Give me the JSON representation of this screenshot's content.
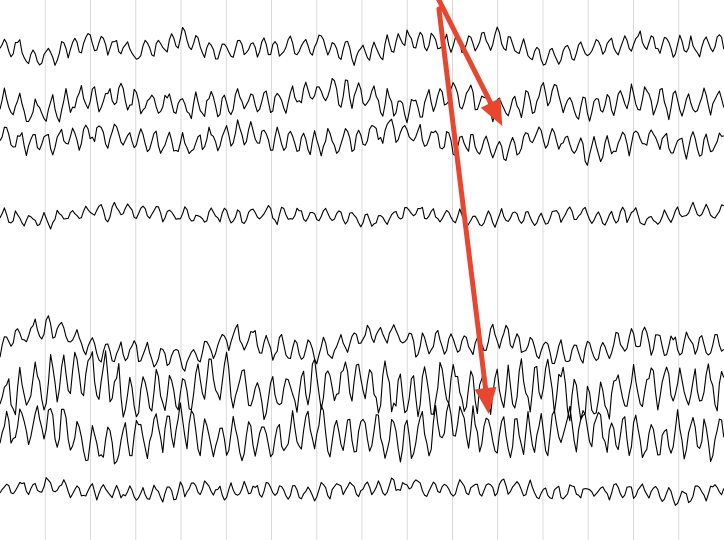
{
  "colors": {
    "background": "#ffffff",
    "grid": "#d9d9d9",
    "trace": "#000000",
    "annotation_arrow": "#e8462e"
  },
  "chart_data": {
    "type": "line",
    "title": "",
    "xlabel": "",
    "ylabel": "",
    "grid": true,
    "legend": "none",
    "x_range": [
      0,
      16
    ],
    "y_range": [
      0,
      12
    ],
    "vertical_gridlines_x": [
      1,
      2,
      3,
      4,
      5,
      6,
      7,
      8,
      9,
      10,
      11,
      12,
      13,
      14,
      15
    ],
    "series": [
      {
        "group": 1,
        "baseline": 1.0,
        "amplitude": 0.55,
        "noise": 0.35,
        "seed": 11,
        "profile": [
          0.0,
          0.55,
          -0.2,
          0.2,
          -0.3,
          0.1,
          0.2,
          -0.1,
          0.3,
          -0.2,
          0.0,
          -0.3,
          0.5,
          0.1,
          -0.2,
          0.1,
          0.0
        ]
      },
      {
        "group": 1,
        "baseline": 2.2,
        "amplitude": 0.6,
        "noise": 0.45,
        "seed": 23,
        "profile": [
          0.1,
          0.5,
          -0.2,
          0.1,
          0.4,
          0.2,
          0.1,
          -0.2,
          0.0,
          0.4,
          -0.3,
          0.2,
          0.0,
          0.5,
          -0.1,
          0.2,
          0.0
        ]
      },
      {
        "group": 1,
        "baseline": 3.1,
        "amplitude": 0.5,
        "noise": 0.4,
        "seed": 37,
        "profile": [
          0.0,
          0.3,
          -0.3,
          0.0,
          0.2,
          -0.2,
          -0.1,
          0.2,
          0.0,
          -0.3,
          0.1,
          0.3,
          -0.2,
          0.4,
          -0.1,
          0.0,
          0.1
        ]
      },
      {
        "group": 1,
        "baseline": 4.8,
        "amplitude": 0.25,
        "noise": 0.25,
        "seed": 41,
        "profile": [
          0.0,
          0.1,
          -0.2,
          0.0,
          0.1,
          0.0,
          -0.1,
          0.1,
          0.0,
          -0.2,
          0.1,
          0.0,
          0.1,
          -0.1,
          0.0,
          0.1,
          0.0
        ]
      },
      {
        "group": 2,
        "baseline": 7.6,
        "amplitude": 0.6,
        "noise": 0.4,
        "seed": 53,
        "profile": [
          0.3,
          -0.5,
          0.2,
          0.4,
          0.6,
          -0.2,
          0.1,
          0.2,
          -0.3,
          0.0,
          0.2,
          -0.1,
          0.3,
          0.4,
          -0.2,
          0.1,
          0.0
        ]
      },
      {
        "group": 2,
        "baseline": 8.6,
        "amplitude": 0.95,
        "noise": 0.8,
        "seed": 67,
        "profile": [
          0.2,
          0.0,
          -0.4,
          0.3,
          0.1,
          -0.2,
          0.3,
          0.0,
          -0.1,
          0.2,
          0.0,
          0.1,
          -0.2,
          0.3,
          0.0,
          0.1,
          0.0
        ]
      },
      {
        "group": 2,
        "baseline": 9.6,
        "amplitude": 0.9,
        "noise": 0.75,
        "seed": 79,
        "profile": [
          0.0,
          -0.3,
          0.4,
          0.1,
          -0.2,
          0.3,
          0.2,
          -0.1,
          0.0,
          0.2,
          -0.3,
          0.1,
          0.0,
          -0.2,
          0.2,
          0.0,
          0.1
        ]
      },
      {
        "group": 2,
        "baseline": 10.9,
        "amplitude": 0.3,
        "noise": 0.25,
        "seed": 97,
        "profile": [
          0.0,
          0.1,
          -0.1,
          0.0,
          0.1,
          0.0,
          -0.1,
          0.1,
          0.0,
          -0.1,
          0.1,
          0.0,
          0.1,
          -0.1,
          0.0,
          0.1,
          0.0
        ]
      }
    ],
    "annotations": [
      {
        "kind": "arrow",
        "from": [
          9.6,
          -0.2
        ],
        "to": [
          11.1,
          2.8
        ],
        "color": "#e8462e"
      },
      {
        "kind": "arrow",
        "from": [
          9.7,
          0.2
        ],
        "to": [
          10.8,
          9.2
        ],
        "color": "#e8462e"
      }
    ]
  }
}
